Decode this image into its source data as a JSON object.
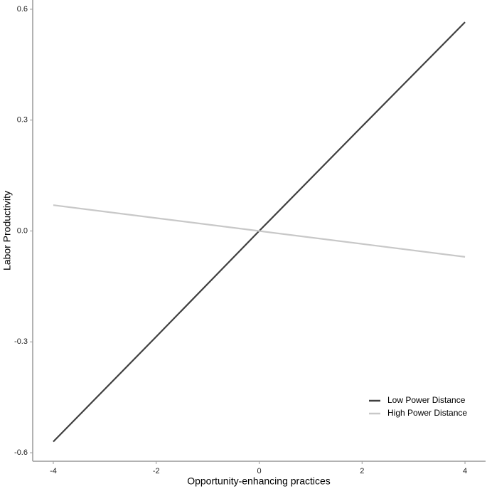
{
  "chart_data": {
    "type": "line",
    "x_label": "Opportunity-enhancing practices",
    "y_label": "Labor Productivity",
    "x": [
      -4,
      -2,
      0,
      2,
      4
    ],
    "series": [
      {
        "name": "Low Power Distance",
        "color": "#404040",
        "values": [
          -0.57,
          -0.286,
          0,
          0.283,
          0.565
        ]
      },
      {
        "name": "High Power Distance",
        "color": "#c8c8c8",
        "values": [
          0.07,
          0.035,
          0,
          -0.035,
          -0.07
        ]
      }
    ],
    "xlim": [
      -4.4,
      4.4
    ],
    "xticks": [
      -4,
      -2,
      0,
      2,
      4
    ],
    "ylim": [
      -0.623,
      0.625
    ],
    "yticks": [
      -0.6,
      -0.3,
      {
        "value": 0,
        "label": "0.0"
      },
      0.3,
      0.6
    ],
    "legend": "bottom-right",
    "grid": false
  }
}
